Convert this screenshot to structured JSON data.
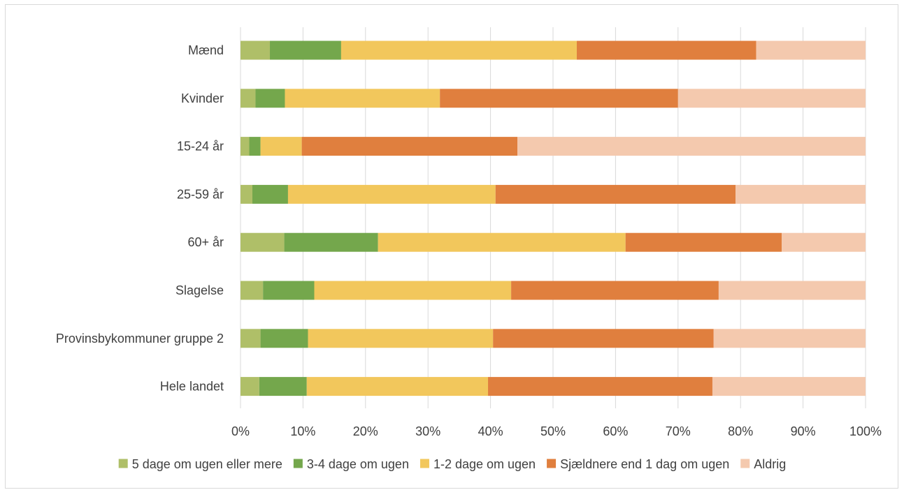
{
  "chart_data": {
    "type": "bar",
    "orientation": "horizontal",
    "stacked": "percent",
    "categories": [
      "Mænd",
      "Kvinder",
      "15-24 år",
      "25-59 år",
      "60+ år",
      "Slagelse",
      "Provinsbykommuner gruppe 2",
      "Hele landet"
    ],
    "series": [
      {
        "name": "5 dage om ugen eller mere",
        "color": "#afbf68",
        "values": [
          4.7,
          2.4,
          1.4,
          1.9,
          7.0,
          3.6,
          3.2,
          3.0
        ]
      },
      {
        "name": "3-4 dage om ugen",
        "color": "#74a74c",
        "values": [
          11.4,
          4.7,
          1.8,
          5.7,
          15.0,
          8.2,
          7.6,
          7.6
        ]
      },
      {
        "name": "1-2 dage om ugen",
        "color": "#f2c75c",
        "values": [
          37.7,
          24.8,
          6.6,
          33.2,
          39.6,
          31.5,
          29.6,
          29.0
        ]
      },
      {
        "name": "Sjældnere end 1 dag om ugen",
        "color": "#e07f3e",
        "values": [
          28.7,
          38.1,
          34.5,
          38.4,
          25.0,
          33.2,
          35.3,
          35.9
        ]
      },
      {
        "name": "Aldrig",
        "color": "#f4c9ae",
        "values": [
          17.5,
          30.0,
          55.7,
          20.8,
          13.4,
          23.5,
          24.3,
          24.5
        ]
      }
    ],
    "xlim": [
      0,
      100
    ],
    "ticks": [
      "0%",
      "10%",
      "20%",
      "30%",
      "40%",
      "50%",
      "60%",
      "70%",
      "80%",
      "90%",
      "100%"
    ],
    "grid": true,
    "legend_position": "bottom"
  }
}
